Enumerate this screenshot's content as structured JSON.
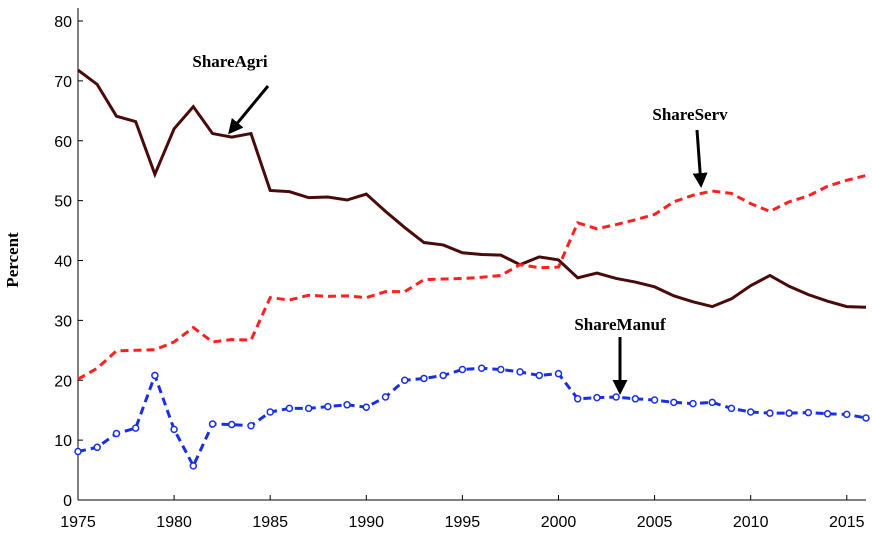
{
  "chart_data": {
    "type": "line",
    "y_label": "Percent",
    "x": [
      1975,
      1976,
      1977,
      1978,
      1979,
      1980,
      1981,
      1982,
      1983,
      1984,
      1985,
      1986,
      1987,
      1988,
      1989,
      1990,
      1991,
      1992,
      1993,
      1994,
      1995,
      1996,
      1997,
      1998,
      1999,
      2000,
      2001,
      2002,
      2003,
      2004,
      2005,
      2006,
      2007,
      2008,
      2009,
      2010,
      2011,
      2012,
      2013,
      2014,
      2015,
      2016
    ],
    "series": [
      {
        "name": "ShareAgri",
        "color": "#4a0a0a",
        "dash": "solid",
        "marker": false,
        "values": [
          71.8,
          69.4,
          64.1,
          63.2,
          54.4,
          62,
          65.7,
          61.2,
          60.6,
          61.2,
          51.7,
          51.5,
          50.5,
          50.6,
          50.1,
          51.1,
          48.2,
          45.5,
          43,
          42.6,
          41.3,
          41,
          40.9,
          39.3,
          40.6,
          40.1,
          37.1,
          37.9,
          37,
          36.4,
          35.6,
          34.1,
          33.1,
          32.3,
          33.6,
          35.8,
          37.5,
          35.7,
          34.3,
          33.2,
          32.3,
          32.2
        ]
      },
      {
        "name": "ShareServ",
        "color": "#ff2020",
        "dash": "dashed",
        "marker": false,
        "values": [
          20.2,
          22,
          24.9,
          25,
          25.1,
          26.4,
          28.8,
          26.4,
          26.8,
          26.7,
          33.8,
          33.4,
          34.2,
          34,
          34.1,
          33.8,
          34.8,
          34.8,
          36.8,
          36.9,
          37,
          37.2,
          37.5,
          39.3,
          38.8,
          38.9,
          46.3,
          45.3,
          46,
          46.8,
          47.7,
          49.8,
          50.9,
          51.6,
          51.2,
          49.5,
          48.2,
          49.8,
          50.8,
          52.4,
          53.4,
          54.2
        ]
      },
      {
        "name": "ShareManuf",
        "color": "#1a2fe0",
        "dash": "dashed",
        "marker": true,
        "values": [
          8.1,
          8.8,
          11.1,
          12,
          20.8,
          11.8,
          5.7,
          12.7,
          12.6,
          12.4,
          14.7,
          15.3,
          15.3,
          15.6,
          15.9,
          15.5,
          17.2,
          20,
          20.3,
          20.8,
          21.8,
          22,
          21.8,
          21.4,
          20.8,
          21.1,
          16.9,
          17.1,
          17.2,
          16.9,
          16.7,
          16.3,
          16.1,
          16.3,
          15.3,
          14.7,
          14.5,
          14.5,
          14.6,
          14.4,
          14.3,
          13.7
        ]
      }
    ],
    "xlim": [
      1975,
      2016
    ],
    "xticks": [
      1975,
      1980,
      1985,
      1990,
      1995,
      2000,
      2005,
      2010,
      2015
    ],
    "ylim": [
      0,
      80
    ],
    "yticks": [
      0,
      10,
      20,
      30,
      40,
      50,
      60,
      70,
      80
    ],
    "annotations": [
      "ShareAgri",
      "ShareServ",
      "ShareManuf"
    ]
  }
}
